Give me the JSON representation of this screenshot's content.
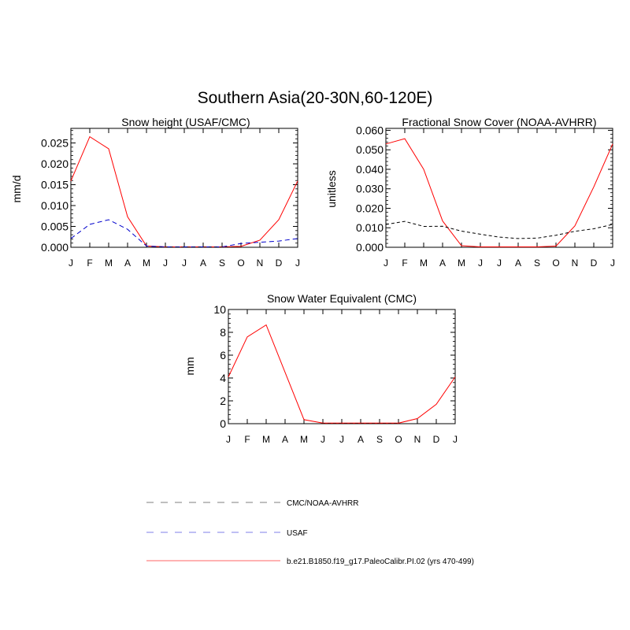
{
  "figure": {
    "title": "Southern Asia(20-30N,60-120E)",
    "months": [
      "J",
      "F",
      "M",
      "A",
      "M",
      "J",
      "J",
      "A",
      "S",
      "O",
      "N",
      "D",
      "J"
    ]
  },
  "colors": {
    "model": "#ff0000",
    "usaf": "#0000cc",
    "cmc": "#000000"
  },
  "legend": {
    "items": [
      {
        "label": "CMC/NOAA-AVHRR",
        "color": "#999999",
        "dash": "dashed"
      },
      {
        "label": "USAF",
        "color": "#9999ee",
        "dash": "dashed"
      },
      {
        "label": "b.e21.B1850.f19_g17.PaleoCalibr.PI.02 (yrs 470-499)",
        "color": "#ff9999",
        "dash": "solid"
      }
    ]
  },
  "chart_data": [
    {
      "type": "line",
      "title": "Snow height (USAF/CMC)",
      "ylabel": "mm/d",
      "ylim": [
        0,
        0.0285
      ],
      "yticks": [
        "0.000",
        "0.005",
        "0.010",
        "0.015",
        "0.020",
        "0.025"
      ],
      "ytick_values": [
        0,
        0.005,
        0.01,
        0.015,
        0.02,
        0.025
      ],
      "x": [
        "J",
        "F",
        "M",
        "A",
        "M",
        "J",
        "J",
        "A",
        "S",
        "O",
        "N",
        "D",
        "J"
      ],
      "series": [
        {
          "key": "model",
          "values": [
            0.0159,
            0.0265,
            0.0236,
            0.0073,
            0.0003,
            0.0001,
            0.0001,
            0.0001,
            0.0001,
            0.0002,
            0.0017,
            0.0066,
            0.0159
          ]
        },
        {
          "key": "usaf",
          "values": [
            0.0021,
            0.0055,
            0.0066,
            0.0043,
            0.0003,
            0.0001,
            0.0001,
            0.0001,
            0.0001,
            0.0009,
            0.0012,
            0.0015,
            0.0021
          ]
        },
        {
          "key": "cmc",
          "values": [
            0,
            0,
            0,
            0,
            0,
            0,
            0,
            0,
            0,
            0,
            0,
            0,
            0
          ]
        }
      ]
    },
    {
      "type": "line",
      "title": "Fractional Snow Cover (NOAA-AVHRR)",
      "ylabel": "unitless",
      "ylim": [
        0,
        0.061
      ],
      "yticks": [
        "0.000",
        "0.010",
        "0.020",
        "0.030",
        "0.040",
        "0.050",
        "0.060"
      ],
      "ytick_values": [
        0,
        0.01,
        0.02,
        0.03,
        0.04,
        0.05,
        0.06
      ],
      "x": [
        "J",
        "F",
        "M",
        "A",
        "M",
        "J",
        "J",
        "A",
        "S",
        "O",
        "N",
        "D",
        "J"
      ],
      "series": [
        {
          "key": "model",
          "values": [
            0.053,
            0.0557,
            0.04,
            0.0135,
            0.0008,
            0.0002,
            0.0002,
            0.0002,
            0.0002,
            0.0006,
            0.011,
            0.031,
            0.053
          ]
        },
        {
          "key": "cmc",
          "values": [
            0.0117,
            0.0133,
            0.0107,
            0.0108,
            0.0083,
            0.0067,
            0.0052,
            0.0045,
            0.0047,
            0.0062,
            0.0082,
            0.0095,
            0.0117
          ]
        }
      ]
    },
    {
      "type": "line",
      "title": "Snow Water Equivalent (CMC)",
      "ylabel": "mm",
      "ylim": [
        0,
        10
      ],
      "yticks": [
        "0",
        "2",
        "4",
        "6",
        "8",
        "10"
      ],
      "ytick_values": [
        0,
        2,
        4,
        6,
        8,
        10
      ],
      "x": [
        "J",
        "F",
        "M",
        "A",
        "M",
        "J",
        "J",
        "A",
        "S",
        "O",
        "N",
        "D",
        "J"
      ],
      "series": [
        {
          "key": "model",
          "values": [
            4.1,
            7.6,
            8.65,
            4.5,
            0.35,
            0.05,
            0.05,
            0.05,
            0.05,
            0.05,
            0.45,
            1.7,
            4.1
          ]
        },
        {
          "key": "cmc",
          "values": [
            0,
            0,
            0,
            0,
            0,
            0,
            0,
            0,
            0,
            0,
            0,
            0,
            0
          ]
        }
      ]
    }
  ]
}
